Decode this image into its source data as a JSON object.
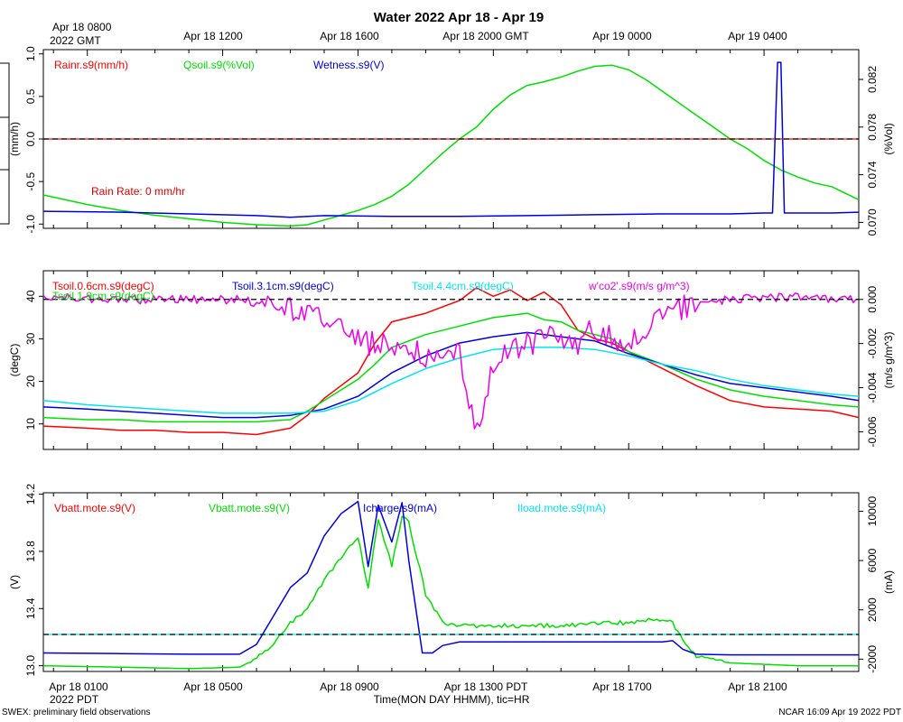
{
  "title": "Water 2022 Apr 18 - Apr 19",
  "gmt_axis": {
    "first_label_line1": "Apr 18 0800",
    "first_label_line2": "2022 GMT",
    "labels": [
      "Apr 18 1200",
      "Apr 18 1600",
      "Apr 18 2000 GMT",
      "Apr 19 0000",
      "Apr 19 0400"
    ]
  },
  "pdt_axis": {
    "labels": [
      "Apr 18 0100",
      "Apr 18 0500",
      "Apr 18 0900",
      "Apr 18 1300 PDT",
      "Apr 18 1700",
      "Apr 18 2100"
    ],
    "first_label_line2": "2022 PDT",
    "xlabel": "Time(MON DAY HHMM), tic=HR"
  },
  "footer": {
    "left": "SWEX: preliminary field observations",
    "right": "NCAR 16:09 Apr 19 2022 PDT"
  },
  "colors": {
    "red": "#ff0000",
    "green": "#00e000",
    "blue": "#0000dd",
    "cyan": "#00e5ee",
    "magenta": "#ee00ee"
  },
  "chart_data": [
    {
      "type": "line",
      "panel": "top",
      "x_hours_pdt": [
        -0.3,
        23.8
      ],
      "left_axis": {
        "label": "(mm/h)",
        "ylim": [
          -1.05,
          1.05
        ],
        "ticks": [
          "1.0",
          "0.5",
          "0.0",
          "-0.5",
          "-1.0"
        ]
      },
      "right_axis": {
        "label": "(%Vol)",
        "ylim": [
          0.0695,
          0.0845
        ],
        "ticks": [
          "0.070",
          "0.074",
          "0.078",
          "0.082"
        ]
      },
      "legend": [
        "Rainr.s9(mm/h)",
        "Qsoil.s9(%Vol)",
        "Wetness.s9(V)"
      ],
      "annotation": "Rain Rate: 0 mm/hr",
      "series": [
        {
          "name": "Qsoil.s9(%Vol)",
          "color": "green",
          "axis": "right",
          "x": [
            -0.3,
            1,
            2,
            3,
            4,
            5,
            6,
            7,
            7.5,
            8,
            8.5,
            9,
            9.5,
            10,
            10.5,
            11,
            11.5,
            12,
            12.5,
            13,
            13.5,
            14,
            14.5,
            15,
            15.5,
            16,
            16.5,
            17,
            17.5,
            18,
            18.5,
            19,
            19.5,
            20,
            20.5,
            21,
            21.5,
            22,
            22.5,
            23,
            23.8
          ],
          "y": [
            0.0723,
            0.0715,
            0.071,
            0.0706,
            0.0703,
            0.07,
            0.0698,
            0.0697,
            0.0698,
            0.0702,
            0.0706,
            0.071,
            0.0715,
            0.0722,
            0.0732,
            0.0745,
            0.0758,
            0.077,
            0.078,
            0.0795,
            0.0807,
            0.0815,
            0.0818,
            0.0822,
            0.0827,
            0.0831,
            0.0832,
            0.0828,
            0.082,
            0.081,
            0.08,
            0.079,
            0.078,
            0.077,
            0.0762,
            0.0752,
            0.0744,
            0.0738,
            0.0733,
            0.073,
            0.0719
          ]
        },
        {
          "name": "Wetness.s9(V)",
          "color": "blue",
          "axis": "left",
          "x": [
            -0.3,
            2,
            4,
            6,
            7,
            8,
            10,
            12,
            14,
            16,
            18,
            19,
            20,
            21,
            21.25,
            21.4,
            21.5,
            21.6,
            21.75,
            22,
            23,
            23.8
          ],
          "y": [
            -0.85,
            -0.86,
            -0.88,
            -0.9,
            -0.92,
            -0.9,
            -0.91,
            -0.91,
            -0.9,
            -0.89,
            -0.88,
            -0.88,
            -0.88,
            -0.87,
            -0.87,
            0.9,
            0.9,
            -0.87,
            -0.87,
            -0.87,
            -0.87,
            -0.86
          ]
        },
        {
          "name": "Rainr.s9(mm/h)",
          "color": "red",
          "axis": "left",
          "x": [
            -0.3,
            23.8
          ],
          "y": [
            0,
            0
          ]
        }
      ]
    },
    {
      "type": "line",
      "panel": "middle",
      "x_hours_pdt": [
        -0.3,
        23.8
      ],
      "left_axis": {
        "label": "(degC)",
        "ylim": [
          4,
          46
        ],
        "ticks": [
          "10",
          "20",
          "30",
          "40"
        ]
      },
      "right_axis": {
        "label": "(m/s g/m^3)",
        "ylim": [
          -0.0068,
          0.0013
        ],
        "ticks": [
          "0.000",
          "-0.002",
          "-0.004",
          "-0.006"
        ]
      },
      "legend": [
        "Tsoil.0.6cm.s9(degC)",
        "Tsoil.1.9cm.s9(degC)",
        "Tsoil.3.1cm.s9(degC)",
        "Tsoil.4.4cm.s9(degC)",
        "w'co2'.s9(m/s g/m^3)"
      ],
      "series": [
        {
          "name": "Tsoil.0.6cm.s9(degC)",
          "color": "red",
          "axis": "left",
          "x": [
            -0.3,
            1,
            2,
            3,
            4,
            5,
            6,
            7,
            7.5,
            8,
            8.5,
            9,
            9.5,
            10,
            11,
            12,
            12.5,
            13,
            13.5,
            14,
            14.5,
            15,
            15.5,
            16,
            16.5,
            17,
            17.5,
            18,
            19,
            20,
            21,
            22,
            23,
            23.8
          ],
          "y": [
            9.5,
            9.0,
            8.5,
            8.5,
            8.0,
            8.0,
            7.5,
            9.0,
            12.0,
            16.0,
            19.0,
            22.0,
            29.0,
            34.0,
            36.0,
            39.0,
            42.0,
            40.0,
            41.5,
            39.0,
            41.0,
            38.0,
            32.0,
            30.0,
            29.0,
            27.0,
            25.0,
            23.0,
            19.0,
            15.5,
            14.0,
            13.5,
            13.0,
            11.5
          ]
        },
        {
          "name": "Tsoil.1.9cm.s9(degC)",
          "color": "green",
          "axis": "left",
          "x": [
            -0.3,
            1,
            2,
            3,
            4,
            5,
            6,
            7,
            7.5,
            8,
            8.5,
            9,
            9.5,
            10,
            11,
            12,
            13,
            14,
            14.5,
            15,
            15.5,
            16,
            16.5,
            17,
            18,
            19,
            20,
            21,
            22,
            23,
            23.8
          ],
          "y": [
            11.5,
            11.0,
            11.0,
            10.5,
            10.5,
            10.5,
            10.5,
            11.0,
            13.0,
            15.5,
            18.0,
            20.5,
            24.0,
            28.0,
            31.0,
            33.0,
            35.0,
            36.0,
            34.5,
            34.0,
            32.0,
            31.0,
            30.0,
            27.0,
            24.0,
            20.5,
            18.0,
            16.5,
            15.5,
            14.5,
            14.0
          ]
        },
        {
          "name": "Tsoil.3.1cm.s9(degC)",
          "color": "blue",
          "axis": "left",
          "x": [
            -0.3,
            1,
            2,
            3,
            4,
            5,
            6,
            7,
            8,
            9,
            10,
            11,
            12,
            13,
            14,
            14.5,
            15,
            16,
            17,
            18,
            19,
            20,
            21,
            22,
            23,
            23.8
          ],
          "y": [
            14.0,
            13.5,
            13.0,
            12.5,
            12.0,
            11.5,
            11.5,
            12.0,
            13.5,
            16.5,
            22.0,
            26.0,
            29.0,
            30.5,
            31.5,
            31.0,
            30.5,
            29.5,
            26.5,
            24.0,
            21.5,
            19.5,
            18.5,
            17.5,
            16.5,
            15.5
          ]
        },
        {
          "name": "Tsoil.4.4cm.s9(degC)",
          "color": "cyan",
          "axis": "left",
          "x": [
            -0.3,
            1,
            2,
            3,
            4,
            5,
            6,
            7,
            8,
            9,
            10,
            11,
            12,
            13,
            14,
            15,
            16,
            17,
            18,
            19,
            20,
            21,
            22,
            23,
            23.8
          ],
          "y": [
            15.5,
            14.5,
            14.0,
            13.5,
            13.0,
            12.5,
            12.5,
            12.5,
            13.0,
            15.5,
            19.5,
            23.0,
            25.5,
            27.5,
            28.0,
            28.0,
            27.5,
            26.0,
            24.0,
            22.5,
            20.5,
            19.0,
            18.0,
            17.0,
            16.5
          ]
        },
        {
          "name": "w'co2'.s9(m/s g/m^3)",
          "color": "magenta",
          "axis": "right",
          "style": "noisy",
          "x": [
            -0.3,
            2,
            4,
            5.5,
            6.5,
            7.5,
            8.5,
            9,
            9.5,
            10,
            10.5,
            11,
            11.5,
            12,
            12.2,
            12.6,
            13,
            13.5,
            14,
            14.5,
            15,
            15.5,
            16,
            16.5,
            17,
            17.5,
            18,
            20,
            22,
            23.8
          ],
          "y": [
            0.0001,
            0.0,
            0.0,
            0.0,
            -0.0003,
            -0.0007,
            -0.0013,
            -0.0019,
            -0.002,
            -0.0022,
            -0.0024,
            -0.0025,
            -0.0024,
            -0.0026,
            -0.0045,
            -0.0061,
            -0.0028,
            -0.0022,
            -0.002,
            -0.0018,
            -0.0016,
            -0.002,
            -0.0013,
            -0.0017,
            -0.002,
            -0.0012,
            -0.0005,
            0.0,
            0.0001,
            0.0
          ]
        }
      ]
    },
    {
      "type": "line",
      "panel": "bottom",
      "x_hours_pdt": [
        -0.3,
        23.8
      ],
      "left_axis": {
        "label": "(V)",
        "ylim": [
          12.96,
          14.21
        ],
        "ticks": [
          "13.0",
          "13.4",
          "13.8",
          "14.2"
        ]
      },
      "right_axis": {
        "label": "(mA)",
        "ylim": [
          -3000,
          11500
        ],
        "ticks": [
          "-2000",
          "2000",
          "6000",
          "10000"
        ]
      },
      "legend": [
        "Vbatt.mote.s9(V)",
        "Vbatt.mote.s9(V)",
        "Icharge.s9(mA)",
        "Iload.mote.s9(mA)"
      ],
      "series": [
        {
          "name": "Vbatt.mote.s9(V)",
          "color": "green",
          "axis": "left",
          "style": "jittery",
          "x": [
            -0.3,
            2,
            4,
            5.5,
            6,
            6.5,
            7,
            7.5,
            8,
            8.5,
            9,
            9.3,
            9.6,
            10,
            10.3,
            10.5,
            11,
            11.5,
            12,
            13,
            14,
            15,
            16,
            17,
            18,
            18.3,
            18.6,
            19,
            20,
            21,
            22,
            23,
            23.8
          ],
          "y": [
            13.0,
            12.99,
            12.98,
            12.99,
            13.05,
            13.15,
            13.3,
            13.4,
            13.6,
            13.75,
            13.9,
            13.55,
            14.02,
            13.7,
            14.05,
            14.0,
            13.5,
            13.3,
            13.28,
            13.28,
            13.28,
            13.28,
            13.3,
            13.3,
            13.33,
            13.3,
            13.18,
            13.06,
            13.02,
            13.01,
            13.0,
            13.0,
            13.0
          ]
        },
        {
          "name": "Icharge.s9(mA)",
          "color": "blue",
          "axis": "right",
          "x": [
            -0.3,
            2,
            4,
            5.5,
            6,
            6.5,
            7,
            7.5,
            8,
            8.5,
            9,
            9.3,
            9.6,
            10,
            10.3,
            10.5,
            10.9,
            11.2,
            11.5,
            12,
            13,
            14,
            15,
            16,
            17,
            18,
            18.3,
            18.6,
            19,
            20,
            22,
            23.8
          ],
          "y": [
            -1500,
            -1550,
            -1600,
            -1600,
            -800,
            1500,
            3800,
            5000,
            8000,
            9800,
            10800,
            5500,
            10500,
            7500,
            10700,
            6000,
            -1500,
            -1500,
            -900,
            -600,
            -600,
            -600,
            -600,
            -600,
            -600,
            -600,
            -500,
            -1200,
            -1600,
            -1650,
            -1650,
            -1650
          ]
        },
        {
          "name": "Iload.mote.s9(mA)",
          "color": "cyan",
          "axis": "right",
          "x": [
            -0.3,
            23.8
          ],
          "y": [
            0,
            0
          ]
        }
      ]
    }
  ]
}
